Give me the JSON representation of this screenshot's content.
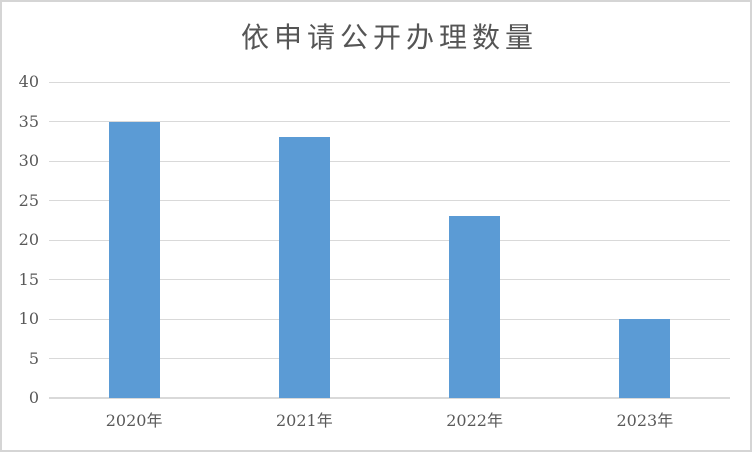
{
  "chart_data": {
    "type": "bar",
    "title": "依申请公开办理数量",
    "categories": [
      "2020年",
      "2021年",
      "2022年",
      "2023年"
    ],
    "values": [
      35,
      33,
      23,
      10
    ],
    "xlabel": "",
    "ylabel": "",
    "ylim": [
      0,
      40
    ],
    "yticks": [
      0,
      5,
      10,
      15,
      20,
      25,
      30,
      35,
      40
    ],
    "grid": "horizontal",
    "legend": "none",
    "colors": {
      "bar": "#5B9BD5",
      "gridline": "#D9D9D9",
      "axis_line": "#D9D9D9",
      "tick_text": "#595959",
      "title_text": "#555555",
      "frame_border": "#D5D5D5",
      "background": "#FFFFFF"
    }
  }
}
